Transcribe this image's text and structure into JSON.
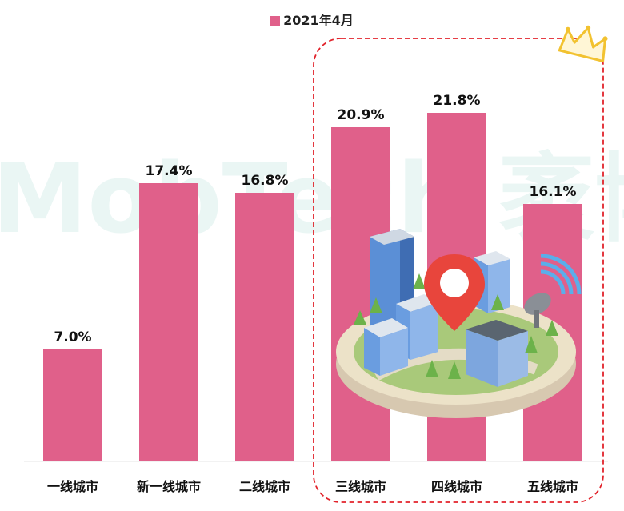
{
  "chart_data": {
    "type": "bar",
    "categories": [
      "一线城市",
      "新一线城市",
      "二线城市",
      "三线城市",
      "四线城市",
      "五线城市"
    ],
    "series": [
      {
        "name": "2021年4月",
        "values": [
          7.0,
          17.4,
          16.8,
          20.9,
          21.8,
          16.1
        ],
        "color": "#e0608a"
      }
    ],
    "value_labels": [
      "7.0%",
      "17.4%",
      "16.8%",
      "20.9%",
      "21.8%",
      "16.1%"
    ],
    "title": "",
    "xlabel": "",
    "ylabel": "",
    "ylim": [
      0,
      24
    ],
    "grid": false,
    "legend": "top-center",
    "highlight_group": [
      "三线城市",
      "四线城市",
      "五线城市"
    ],
    "highlight_color": "#e2232b"
  },
  "watermark": "MobTech 袤博",
  "colors": {
    "bar": "#e0608a",
    "highlight_border": "#e2232b",
    "crown": "#f2c230",
    "watermark": "#d9efec"
  },
  "icons": [
    "crown-icon",
    "city-illustration-icon",
    "map-pin-icon",
    "satellite-dish-icon"
  ]
}
